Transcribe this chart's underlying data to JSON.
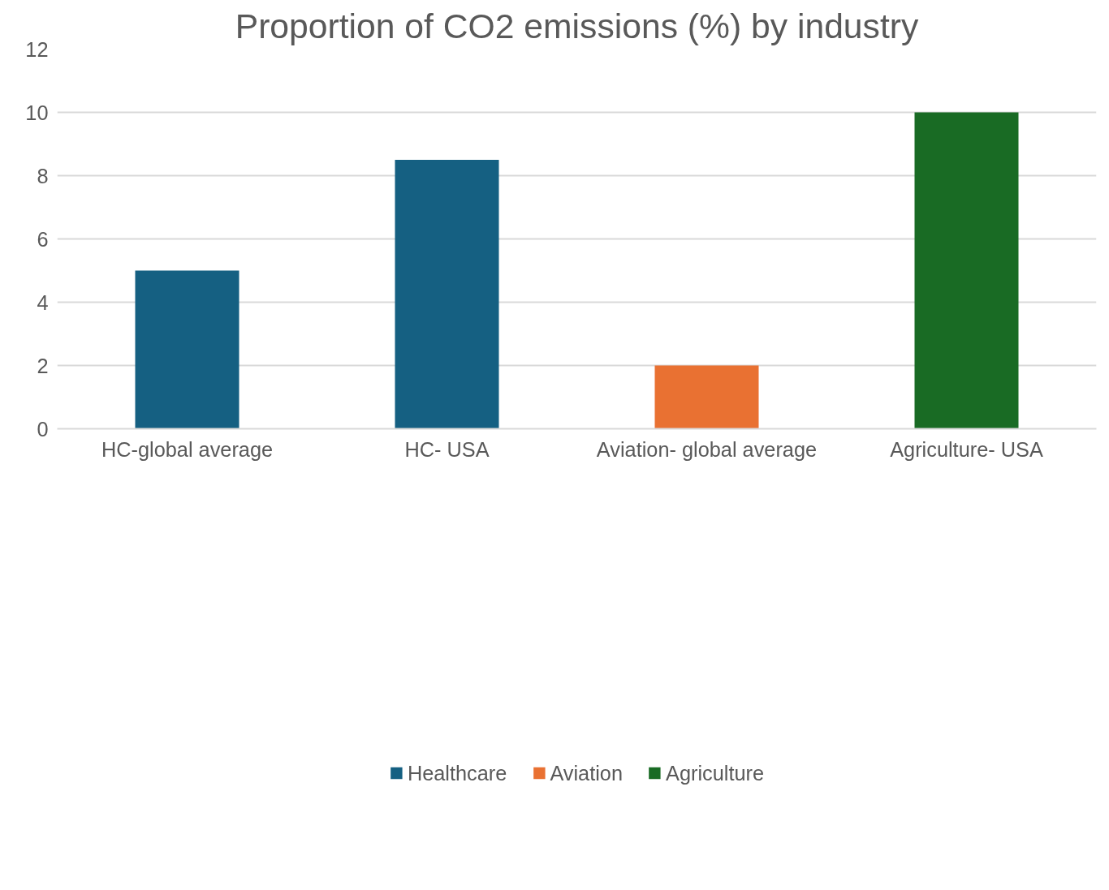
{
  "chart_data": {
    "type": "bar",
    "title": "Proportion of CO2 emissions (%) by industry",
    "categories": [
      "HC-global average",
      "HC- USA",
      "Aviation- global average",
      "Agriculture- USA"
    ],
    "series": [
      {
        "name": "Healthcare",
        "color": "#156082",
        "values": [
          5,
          8.5,
          null,
          null
        ]
      },
      {
        "name": "Aviation",
        "color": "#e97132",
        "values": [
          null,
          null,
          2,
          null
        ]
      },
      {
        "name": "Agriculture",
        "color": "#196b24",
        "values": [
          null,
          null,
          null,
          10
        ]
      }
    ],
    "ylim": [
      0,
      12
    ],
    "yticks": [
      0,
      2,
      4,
      6,
      8,
      10,
      12
    ],
    "grid": "y",
    "legend": "bottom"
  }
}
